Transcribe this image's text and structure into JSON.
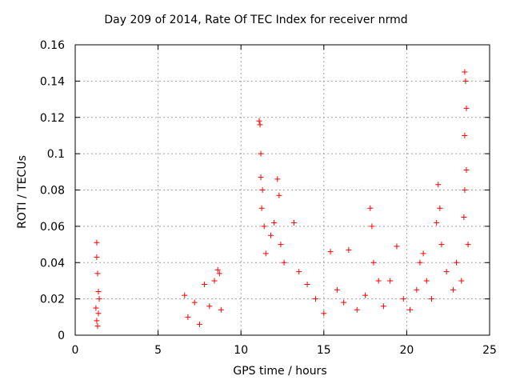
{
  "chart_data": {
    "type": "scatter",
    "title": "Day 209 of 2014, Rate Of TEC Index for receiver nrmd",
    "xlabel": "GPS time / hours",
    "ylabel": "ROTI / TECUs",
    "xlim": [
      0,
      25
    ],
    "ylim": [
      0,
      0.16
    ],
    "xticks": [
      0,
      5,
      10,
      15,
      20,
      25
    ],
    "yticks": [
      0,
      0.02,
      0.04,
      0.06,
      0.08,
      0.1,
      0.12,
      0.14,
      0.16
    ],
    "xtick_labels": [
      "0",
      "5",
      "10",
      "15",
      "20",
      "25"
    ],
    "ytick_labels": [
      "0",
      "0.02",
      "0.04",
      "0.06",
      "0.08",
      "0.1",
      "0.12",
      "0.14",
      "0.16"
    ],
    "grid": true,
    "marker": "+",
    "color": "#ff0000",
    "series": [
      {
        "name": "ROTI",
        "points": [
          [
            1.3,
            0.051
          ],
          [
            1.3,
            0.043
          ],
          [
            1.35,
            0.034
          ],
          [
            1.4,
            0.024
          ],
          [
            1.25,
            0.015
          ],
          [
            1.3,
            0.008
          ],
          [
            1.4,
            0.012
          ],
          [
            1.45,
            0.02
          ],
          [
            1.35,
            0.005
          ],
          [
            6.6,
            0.022
          ],
          [
            6.8,
            0.01
          ],
          [
            7.2,
            0.018
          ],
          [
            7.5,
            0.006
          ],
          [
            7.8,
            0.028
          ],
          [
            8.1,
            0.016
          ],
          [
            8.4,
            0.03
          ],
          [
            8.6,
            0.036
          ],
          [
            8.7,
            0.034
          ],
          [
            8.8,
            0.014
          ],
          [
            11.1,
            0.118
          ],
          [
            11.15,
            0.116
          ],
          [
            11.2,
            0.1
          ],
          [
            11.2,
            0.087
          ],
          [
            11.3,
            0.08
          ],
          [
            11.25,
            0.07
          ],
          [
            11.4,
            0.06
          ],
          [
            11.5,
            0.045
          ],
          [
            11.8,
            0.055
          ],
          [
            12.0,
            0.062
          ],
          [
            12.2,
            0.086
          ],
          [
            12.3,
            0.077
          ],
          [
            12.4,
            0.05
          ],
          [
            12.6,
            0.04
          ],
          [
            13.2,
            0.062
          ],
          [
            13.5,
            0.035
          ],
          [
            14.0,
            0.028
          ],
          [
            14.5,
            0.02
          ],
          [
            15.0,
            0.012
          ],
          [
            15.4,
            0.046
          ],
          [
            15.8,
            0.025
          ],
          [
            16.2,
            0.018
          ],
          [
            16.5,
            0.047
          ],
          [
            17.0,
            0.014
          ],
          [
            17.5,
            0.022
          ],
          [
            17.8,
            0.07
          ],
          [
            17.9,
            0.06
          ],
          [
            18.0,
            0.04
          ],
          [
            18.3,
            0.03
          ],
          [
            18.6,
            0.016
          ],
          [
            19.0,
            0.03
          ],
          [
            19.4,
            0.049
          ],
          [
            19.8,
            0.02
          ],
          [
            20.2,
            0.014
          ],
          [
            20.6,
            0.025
          ],
          [
            20.8,
            0.04
          ],
          [
            21.0,
            0.045
          ],
          [
            21.2,
            0.03
          ],
          [
            21.5,
            0.02
          ],
          [
            21.8,
            0.062
          ],
          [
            21.9,
            0.083
          ],
          [
            22.0,
            0.07
          ],
          [
            22.1,
            0.05
          ],
          [
            22.4,
            0.035
          ],
          [
            22.8,
            0.025
          ],
          [
            23.0,
            0.04
          ],
          [
            23.3,
            0.03
          ],
          [
            23.5,
            0.145
          ],
          [
            23.55,
            0.14
          ],
          [
            23.6,
            0.125
          ],
          [
            23.5,
            0.11
          ],
          [
            23.6,
            0.091
          ],
          [
            23.5,
            0.08
          ],
          [
            23.45,
            0.065
          ],
          [
            23.7,
            0.05
          ]
        ]
      }
    ]
  }
}
